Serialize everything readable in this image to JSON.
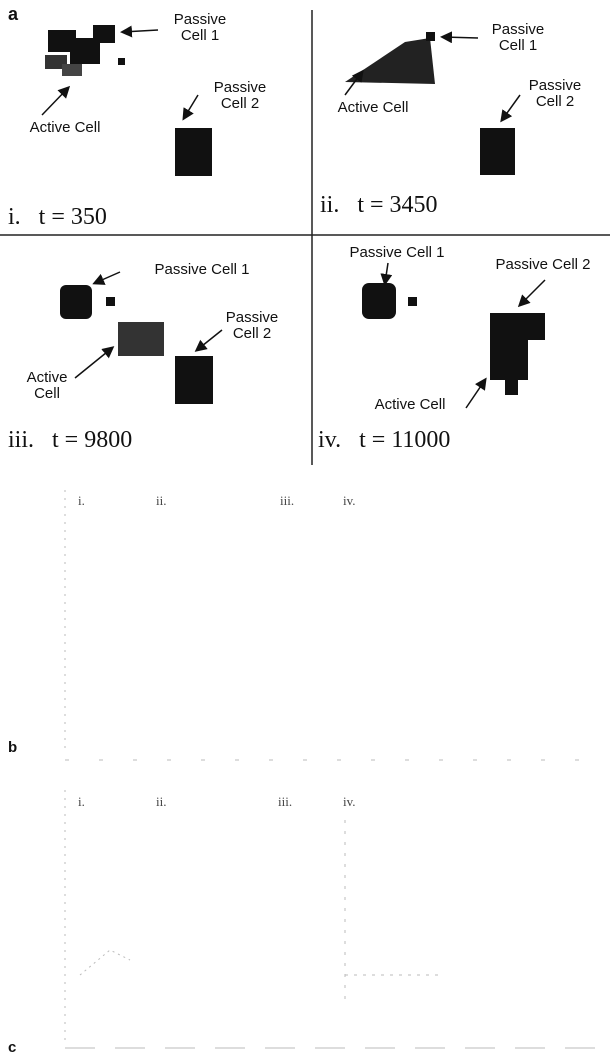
{
  "figure": {
    "panel_a": {
      "label": "a",
      "panels": [
        {
          "numeral": "i.",
          "time": "t = 350",
          "passive1": "Passive Cell 1",
          "active": "Active Cell",
          "passive2": "Passive Cell 2"
        },
        {
          "numeral": "ii.",
          "time": "t = 3450",
          "passive1": "Passive Cell 1",
          "active": "Active Cell",
          "passive2": "Passive Cell 2"
        },
        {
          "numeral": "iii.",
          "time": "t = 9800",
          "passive1": "Passive Cell 1",
          "active": "Active Cell",
          "passive2": "Passive Cell 2"
        },
        {
          "numeral": "iv.",
          "time": "t = 11000",
          "passive1": "Passive Cell 1",
          "active": "Active Cell",
          "passive2": "Passive Cell 2"
        }
      ]
    },
    "panel_b": {
      "label": "b",
      "markers": [
        "i.",
        "ii.",
        "iii.",
        "iv."
      ]
    },
    "panel_c": {
      "label": "c",
      "markers": [
        "i.",
        "ii.",
        "iii.",
        "iv."
      ]
    }
  }
}
